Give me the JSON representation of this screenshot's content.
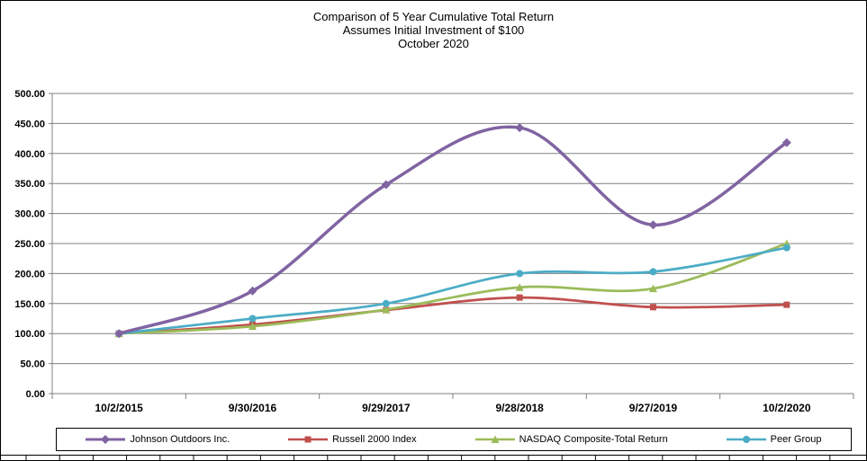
{
  "chart_data": {
    "type": "line",
    "line_style": "smooth",
    "title": "Comparison of 5 Year Cumulative Total Return",
    "subtitle1": "Assumes Initial Investment of $100",
    "subtitle2": "October 2020",
    "categories": [
      "10/2/2015",
      "9/30/2016",
      "9/29/2017",
      "9/28/2018",
      "9/27/2019",
      "10/2/2020"
    ],
    "series": [
      {
        "name": "Johnson Outdoors Inc.",
        "color": "#8064A2",
        "marker": "diamond",
        "values": [
          100.0,
          171.0,
          348.0,
          443.0,
          281.0,
          418.0
        ]
      },
      {
        "name": "Russell 2000 Index",
        "color": "#C0504D",
        "marker": "square",
        "values": [
          100.0,
          115.0,
          139.0,
          160.0,
          144.0,
          148.0
        ]
      },
      {
        "name": "NASDAQ Composite-Total Return",
        "color": "#9BBB59",
        "marker": "triangle",
        "values": [
          100.0,
          112.0,
          140.0,
          177.0,
          175.0,
          250.0
        ]
      },
      {
        "name": "Peer Group",
        "color": "#4BACC6",
        "marker": "circle",
        "values": [
          100.0,
          125.0,
          150.0,
          200.0,
          203.0,
          243.0
        ]
      }
    ],
    "y_axis": {
      "min": 0,
      "max": 500,
      "step": 50,
      "tick_labels": [
        "0.00",
        "50.00",
        "100.00",
        "150.00",
        "200.00",
        "250.00",
        "300.00",
        "350.00",
        "400.00",
        "450.00",
        "500.00"
      ]
    },
    "grid": true,
    "legend_position": "bottom",
    "axis_color": "#808080",
    "text_color": "#000000"
  }
}
